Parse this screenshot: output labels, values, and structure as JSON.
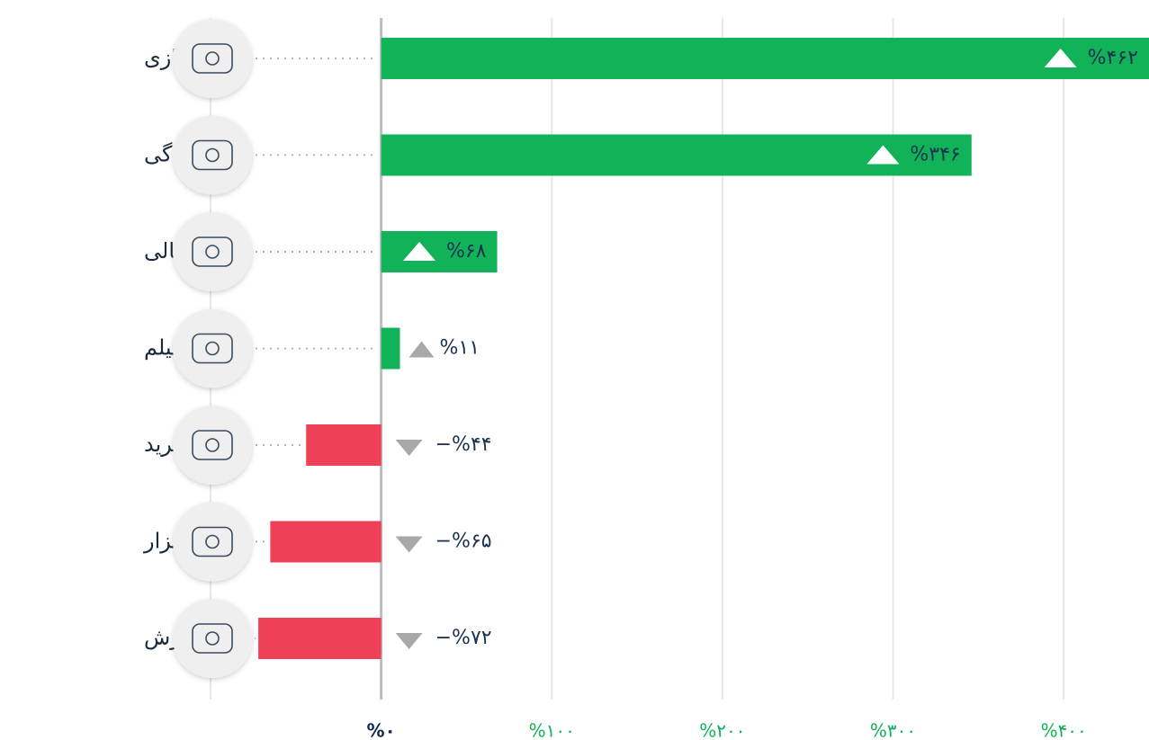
{
  "chart_data": {
    "type": "barh",
    "categories": [
      "بازی",
      "سبک زندگی",
      "مالی",
      "پخش فیلم",
      "خرید",
      "ابزار",
      "آموزش"
    ],
    "values": [
      462,
      346,
      68,
      11,
      -44,
      -65,
      -72
    ],
    "value_labels": [
      "%۴۶۲",
      "%۳۴۶",
      "%۶۸",
      "%۱۱",
      "−%۴۴",
      "−%۶۵",
      "−%۷۲"
    ],
    "positive_color": "#12b259",
    "negative_color": "#ee4057",
    "xlim": [
      -100,
      450
    ],
    "xticks": [
      {
        "value": 0,
        "label": "%۰"
      },
      {
        "value": 100,
        "label": "%۱۰۰"
      },
      {
        "value": 200,
        "label": "%۲۰۰"
      },
      {
        "value": 300,
        "label": "%۳۰۰"
      },
      {
        "value": 400,
        "label": "%۴۰۰"
      }
    ],
    "grid": true
  }
}
